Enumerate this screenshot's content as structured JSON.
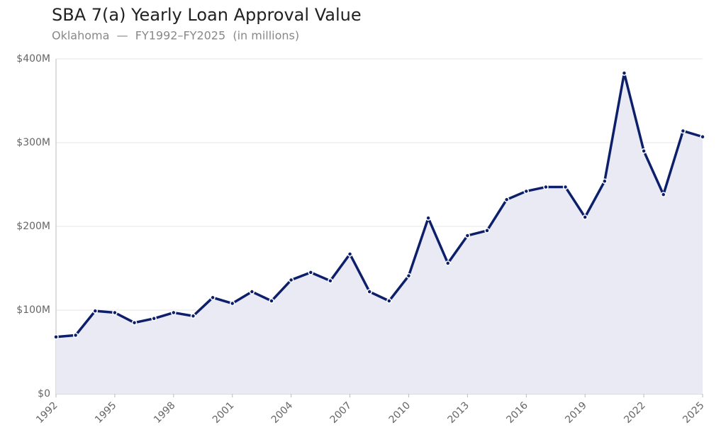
{
  "chart_data": {
    "type": "line",
    "title": "SBA 7(a) Yearly Loan Approval Value",
    "subtitle": "Oklahoma  —  FY1992–FY2025  (in millions)",
    "x": [
      1992,
      1993,
      1994,
      1995,
      1996,
      1997,
      1998,
      1999,
      2000,
      2001,
      2002,
      2003,
      2004,
      2005,
      2006,
      2007,
      2008,
      2009,
      2010,
      2011,
      2012,
      2013,
      2014,
      2015,
      2016,
      2017,
      2018,
      2019,
      2020,
      2021,
      2022,
      2023,
      2024,
      2025
    ],
    "series": [
      {
        "name": "Approval value",
        "color": "#0d1f6b",
        "values": [
          68,
          70,
          99,
          97,
          85,
          90,
          97,
          93,
          115,
          108,
          122,
          111,
          136,
          145,
          135,
          167,
          122,
          111,
          141,
          210,
          156,
          189,
          195,
          232,
          242,
          247,
          247,
          211,
          254,
          383,
          290,
          238,
          314,
          307
        ]
      }
    ],
    "xlim": [
      1992,
      2025
    ],
    "xticks": [
      1992,
      1995,
      1998,
      2001,
      2004,
      2007,
      2010,
      2013,
      2016,
      2019,
      2022,
      2025
    ],
    "ylim": [
      0,
      400
    ],
    "yticks": [
      {
        "value": 0,
        "label": "$0"
      },
      {
        "value": 100,
        "label": "$100M"
      },
      {
        "value": 200,
        "label": "$200M"
      },
      {
        "value": 300,
        "label": "$300M"
      },
      {
        "value": 400,
        "label": "$400M"
      }
    ],
    "grid": true,
    "area_color": "#e9eaf4"
  }
}
